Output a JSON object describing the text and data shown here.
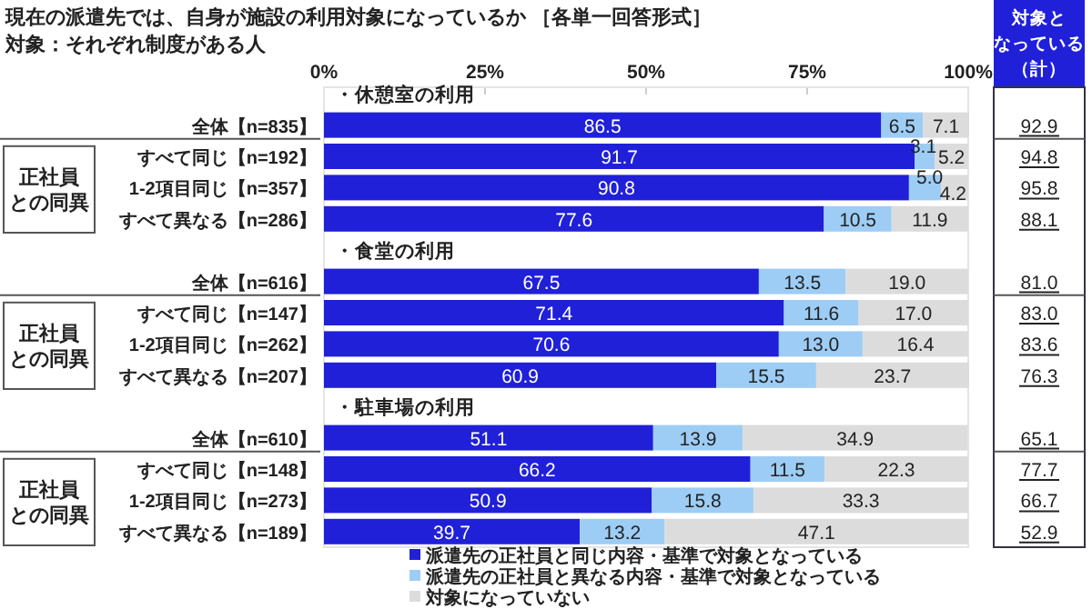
{
  "chart_data": {
    "type": "bar",
    "orientation": "horizontal",
    "stacked": true,
    "title": "現在の派遣先では、自身が施設の利用対象になっているか ［各単一回答形式］",
    "subtitle": "対象：それぞれ制度がある人",
    "categories": [
      "全体【n=835】",
      "すべて同じ【n=192】",
      "1-2項目同じ【n=357】",
      "すべて異なる【n=286】",
      "全体【n=616】",
      "すべて同じ【n=147】",
      "1-2項目同じ【n=262】",
      "すべて異なる【n=207】",
      "全体【n=610】",
      "すべて同じ【n=148】",
      "1-2項目同じ【n=273】",
      "すべて異なる【n=189】"
    ],
    "series": [
      {
        "name": "派遣先の正社員と同じ内容・基準で対象となっている",
        "color": "#2020d8",
        "values": [
          86.5,
          91.7,
          90.8,
          77.6,
          67.5,
          71.4,
          70.6,
          60.9,
          51.1,
          66.2,
          50.9,
          39.7
        ],
        "value_labels": [
          "86.5",
          "91.7",
          "90.8",
          "77.6",
          "67.5",
          "71.4",
          "70.6",
          "60.9",
          "51.1",
          "66.2",
          "50.9",
          "39.7"
        ]
      },
      {
        "name": "派遣先の正社員と異なる内容・基準で対象となっている",
        "color": "#9dcdf5",
        "values": [
          6.5,
          3.1,
          5.0,
          10.5,
          13.5,
          11.6,
          13.0,
          15.5,
          13.9,
          11.5,
          15.8,
          13.2
        ],
        "value_labels": [
          "6.5",
          "3.1",
          "5.0",
          "10.5",
          "13.5",
          "11.6",
          "13.0",
          "15.5",
          "13.9",
          "11.5",
          "15.8",
          "13.2"
        ]
      },
      {
        "name": "対象になっていない",
        "color": "#dcdcdc",
        "values": [
          7.1,
          5.2,
          4.2,
          11.9,
          19.0,
          17.0,
          16.4,
          23.7,
          34.9,
          22.3,
          33.3,
          47.1
        ],
        "value_labels": [
          "7.1",
          "5.2",
          "4.2",
          "11.9",
          "19.0",
          "17.0",
          "16.4",
          "23.7",
          "34.9",
          "22.3",
          "33.3",
          "47.1"
        ]
      }
    ],
    "xlim": [
      0,
      100
    ],
    "xticks": [
      {
        "value": 0,
        "label": "0%"
      },
      {
        "value": 25,
        "label": "25%"
      },
      {
        "value": 50,
        "label": "50%"
      },
      {
        "value": 75,
        "label": "75%"
      },
      {
        "value": 100,
        "label": "100%"
      }
    ],
    "annotations": [
      "・休憩室の利用",
      "・食堂の利用",
      "・駐車場の利用",
      "正社員との同異",
      "正社員との同異",
      "正社員との同異",
      "対象となっている（計）",
      "92.9",
      "94.8",
      "95.8",
      "88.1",
      "81.0",
      "83.0",
      "83.6",
      "76.3",
      "65.1",
      "77.7",
      "66.7",
      "52.9"
    ],
    "legend": "bottom",
    "grid": false
  }
}
